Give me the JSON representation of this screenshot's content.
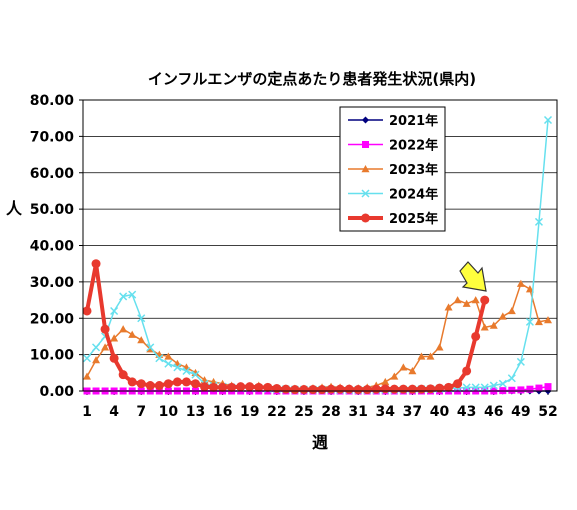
{
  "chart_data": {
    "type": "line",
    "title": "インフルエンザの定点あたり患者発生状況(県内)",
    "xlabel": "週",
    "ylabel": "人",
    "ylim": [
      0,
      80
    ],
    "yticks": [
      "0.00",
      "10.00",
      "20.00",
      "30.00",
      "40.00",
      "50.00",
      "60.00",
      "70.00",
      "80.00"
    ],
    "xlim": [
      1,
      52
    ],
    "xticks": [
      1,
      4,
      7,
      10,
      13,
      16,
      19,
      22,
      25,
      28,
      31,
      34,
      37,
      40,
      43,
      46,
      49,
      52
    ],
    "legend_position": "top-right",
    "grid": "horizontal",
    "series": [
      {
        "name": "2021年",
        "color": "#00007f",
        "marker": "diamond",
        "values": [
          0,
          0,
          0,
          0,
          0,
          0,
          0,
          0,
          0,
          0,
          0,
          0,
          0,
          0,
          0,
          0,
          0,
          0,
          0,
          0,
          0,
          0,
          0,
          0,
          0,
          0,
          0,
          0,
          0,
          0,
          0,
          0,
          0,
          0,
          0,
          0,
          0,
          0,
          0,
          0,
          0,
          0,
          0,
          0,
          0,
          0,
          0,
          0,
          0,
          0,
          0,
          0
        ]
      },
      {
        "name": "2022年",
        "color": "#ff00ff",
        "marker": "square",
        "values": [
          0,
          0,
          0,
          0,
          0,
          0,
          0,
          0,
          0,
          0,
          0,
          0,
          0,
          0,
          0,
          0,
          0,
          0,
          0,
          0,
          0,
          0,
          0,
          0,
          0,
          0,
          0,
          0,
          0,
          0,
          0,
          0,
          0,
          0,
          0,
          0,
          0,
          0,
          0,
          0,
          0,
          0,
          0,
          0,
          0,
          0,
          0.1,
          0.2,
          0.3,
          0.5,
          0.8,
          1.2
        ]
      },
      {
        "name": "2023年",
        "color": "#e87a2d",
        "marker": "triangle",
        "values": [
          4.0,
          8.5,
          12.0,
          14.5,
          17.0,
          15.5,
          14.0,
          11.5,
          10.0,
          9.5,
          7.5,
          6.5,
          5.0,
          3.0,
          2.5,
          2.0,
          1.5,
          1.0,
          1.0,
          1.5,
          1.0,
          0.8,
          0.7,
          0.7,
          0.7,
          0.8,
          1.0,
          1.2,
          1.0,
          0.8,
          0.8,
          1.0,
          1.5,
          2.5,
          4.0,
          6.5,
          5.5,
          9.5,
          9.5,
          12.0,
          23.0,
          25.0,
          24.0,
          25.0,
          17.5,
          18.0,
          20.5,
          22.0,
          29.5,
          28.0,
          19.0,
          19.5
        ]
      },
      {
        "name": "2024年",
        "color": "#66e0ee",
        "marker": "x",
        "values": [
          9.0,
          12.0,
          15.0,
          22.0,
          26.0,
          26.5,
          20.0,
          12.0,
          9.0,
          7.5,
          6.5,
          5.5,
          4.5,
          2.0,
          1.5,
          1.2,
          1.0,
          0.8,
          0.8,
          0.8,
          0.6,
          0.5,
          0.5,
          0.4,
          0.4,
          0.4,
          0.4,
          0.4,
          0.3,
          0.3,
          0.3,
          0.3,
          0.3,
          0.3,
          0.3,
          0.4,
          0.4,
          0.5,
          0.5,
          0.6,
          0.7,
          0.8,
          1.0,
          1.0,
          1.0,
          1.5,
          2.0,
          3.5,
          8.0,
          19.0,
          46.5,
          74.5
        ]
      },
      {
        "name": "2025年",
        "color": "#e8392e",
        "marker": "circle",
        "values": [
          22.0,
          35.0,
          17.0,
          9.0,
          4.5,
          2.5,
          2.0,
          1.5,
          1.5,
          2.0,
          2.5,
          2.5,
          2.0,
          1.2,
          1.0,
          1.0,
          1.0,
          1.2,
          1.2,
          1.0,
          1.0,
          0.7,
          0.5,
          0.4,
          0.4,
          0.4,
          0.4,
          0.5,
          0.5,
          0.5,
          0.4,
          0.4,
          0.5,
          0.6,
          0.5,
          0.5,
          0.5,
          0.5,
          0.6,
          0.8,
          1.0,
          2.0,
          5.5,
          15.0,
          25.0,
          null,
          null,
          null,
          null,
          null,
          null,
          null
        ]
      }
    ]
  }
}
